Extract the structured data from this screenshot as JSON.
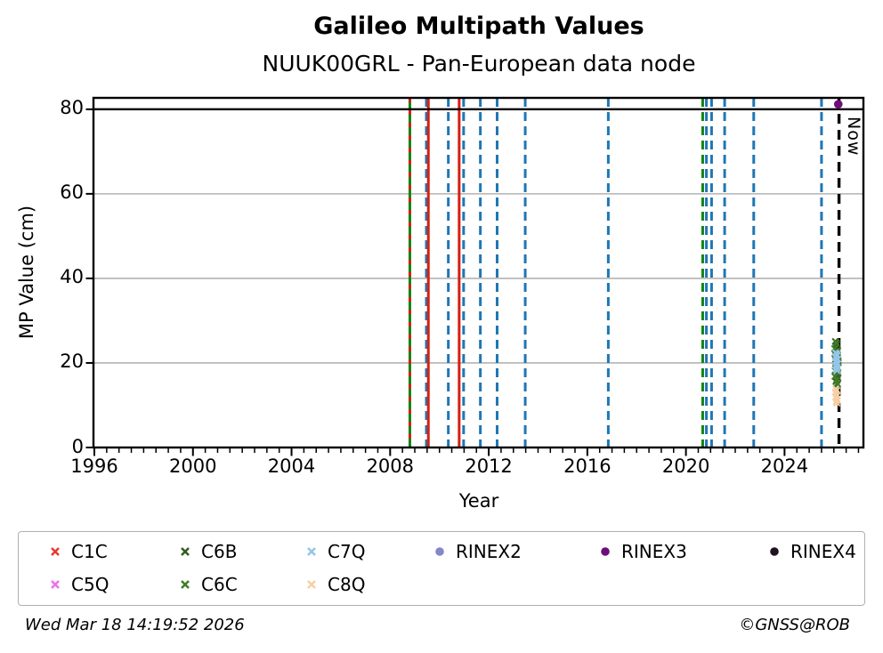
{
  "page": {
    "title": "Galileo Multipath Values",
    "subtitle": "NUUK00GRL - Pan-European data node"
  },
  "footer": {
    "timestamp": "Wed Mar 18 14:19:52 2026",
    "credit": "©GNSS@ROB"
  },
  "chart_data": {
    "type": "scatter",
    "title": "Galileo Multipath Values",
    "subtitle": "NUUK00GRL - Pan-European data node",
    "xlabel": "Year",
    "ylabel": "MP Value (cm)",
    "now_label": "Now",
    "xlim": [
      1996,
      2027.2
    ],
    "ylim": [
      0,
      82.7
    ],
    "x_major_ticks": [
      1996,
      2000,
      2004,
      2008,
      2012,
      2016,
      2020,
      2024
    ],
    "x_minor_step": 0.5,
    "y_ticks": [
      0,
      20,
      40,
      60,
      80
    ],
    "gridlines_y": [
      20,
      40,
      60
    ],
    "hline_y": 80,
    "grid_on": true,
    "legend_position": "bottom",
    "now_x": 2026.21,
    "colors": {
      "blue_event": "#1f77b4",
      "red_event": "#d62010",
      "green_event": "#128412",
      "now_line": "#000000",
      "grid": "#b3b3b3",
      "hline": "#000000"
    },
    "event_lines": [
      {
        "x": 2008.8,
        "color": "green",
        "style": "solid"
      },
      {
        "x": 2008.8,
        "color": "red",
        "style": "dashed"
      },
      {
        "x": 2009.47,
        "color": "blue",
        "style": "dashed"
      },
      {
        "x": 2009.55,
        "color": "red",
        "style": "solid"
      },
      {
        "x": 2010.36,
        "color": "blue",
        "style": "dashed"
      },
      {
        "x": 2010.8,
        "color": "red",
        "style": "solid"
      },
      {
        "x": 2010.98,
        "color": "blue",
        "style": "dashed"
      },
      {
        "x": 2011.66,
        "color": "blue",
        "style": "dashed"
      },
      {
        "x": 2012.34,
        "color": "blue",
        "style": "dashed"
      },
      {
        "x": 2013.48,
        "color": "blue",
        "style": "dashed"
      },
      {
        "x": 2016.85,
        "color": "blue",
        "style": "dashed"
      },
      {
        "x": 2020.68,
        "color": "green",
        "style": "dashed"
      },
      {
        "x": 2020.83,
        "color": "blue",
        "style": "dashed"
      },
      {
        "x": 2021.04,
        "color": "blue",
        "style": "dashed"
      },
      {
        "x": 2021.57,
        "color": "blue",
        "style": "dashed"
      },
      {
        "x": 2022.75,
        "color": "blue",
        "style": "dashed"
      },
      {
        "x": 2025.5,
        "color": "blue",
        "style": "dashed"
      }
    ],
    "series": [
      {
        "id": "C1C",
        "color": "#e8392f",
        "marker": "x",
        "points": []
      },
      {
        "id": "C5Q",
        "color": "#ef6ef0",
        "marker": "x",
        "points": [
          [
            2026.07,
            20.7
          ],
          [
            2026.12,
            16.9
          ]
        ]
      },
      {
        "id": "C6B",
        "color": "#355c1c",
        "marker": "x",
        "points": [
          [
            2026.06,
            25.1
          ],
          [
            2026.13,
            24.4
          ],
          [
            2026.09,
            23.7
          ],
          [
            2026.16,
            23.0
          ],
          [
            2026.04,
            22.2
          ],
          [
            2026.11,
            21.4
          ],
          [
            2026.18,
            20.6
          ],
          [
            2026.07,
            19.8
          ],
          [
            2026.14,
            19.0
          ],
          [
            2026.05,
            18.2
          ],
          [
            2026.12,
            17.3
          ],
          [
            2026.17,
            16.4
          ],
          [
            2026.08,
            15.6
          ],
          [
            2026.15,
            14.9
          ]
        ]
      },
      {
        "id": "C6C",
        "color": "#3f7d28",
        "marker": "x",
        "points": [
          [
            2026.1,
            24.8
          ],
          [
            2026.03,
            23.4
          ],
          [
            2026.15,
            22.6
          ],
          [
            2026.07,
            21.8
          ],
          [
            2026.13,
            21.0
          ],
          [
            2026.19,
            20.1
          ],
          [
            2026.06,
            19.3
          ],
          [
            2026.12,
            18.5
          ],
          [
            2026.17,
            17.7
          ],
          [
            2026.04,
            16.8
          ],
          [
            2026.11,
            16.0
          ],
          [
            2026.14,
            15.2
          ]
        ]
      },
      {
        "id": "C7Q",
        "color": "#94c6e9",
        "marker": "x",
        "points": [
          [
            2026.07,
            22.4
          ],
          [
            2026.11,
            22.1
          ],
          [
            2026.15,
            21.8
          ],
          [
            2026.06,
            21.4
          ],
          [
            2026.1,
            21.1
          ],
          [
            2026.14,
            20.8
          ],
          [
            2026.08,
            20.4
          ],
          [
            2026.12,
            20.1
          ],
          [
            2026.16,
            19.8
          ],
          [
            2026.07,
            19.4
          ],
          [
            2026.11,
            19.1
          ],
          [
            2026.14,
            18.8
          ],
          [
            2026.09,
            18.5
          ],
          [
            2026.13,
            18.2
          ]
        ]
      },
      {
        "id": "C8Q",
        "color": "#f6cfa4",
        "marker": "x",
        "points": [
          [
            2026.08,
            13.9
          ],
          [
            2026.12,
            13.5
          ],
          [
            2026.06,
            13.1
          ],
          [
            2026.1,
            12.7
          ],
          [
            2026.14,
            12.3
          ],
          [
            2026.07,
            11.9
          ],
          [
            2026.11,
            11.5
          ],
          [
            2026.15,
            11.1
          ],
          [
            2026.09,
            10.8
          ],
          [
            2026.13,
            10.5
          ]
        ]
      },
      {
        "id": "RINEX2",
        "color": "#8487c9",
        "marker": "dot",
        "points": []
      },
      {
        "id": "RINEX3",
        "color": "#6f0d7a",
        "marker": "dot",
        "points": [
          [
            2026.18,
            81.2
          ]
        ]
      },
      {
        "id": "RINEX4",
        "color": "#201020",
        "marker": "dot",
        "points": []
      }
    ]
  },
  "legend": {
    "col_lefts": [
      33,
      179,
      321,
      465,
      651,
      841
    ],
    "row_tops": [
      8,
      45
    ],
    "items": [
      {
        "label": "C1C",
        "color": "#e8392f",
        "marker": "x",
        "row": 0,
        "col": 0
      },
      {
        "label": "C5Q",
        "color": "#ef6ef0",
        "marker": "x",
        "row": 1,
        "col": 0
      },
      {
        "label": "C6B",
        "color": "#355c1c",
        "marker": "x",
        "row": 0,
        "col": 1
      },
      {
        "label": "C6C",
        "color": "#3f7d28",
        "marker": "x",
        "row": 1,
        "col": 1
      },
      {
        "label": "C7Q",
        "color": "#94c6e9",
        "marker": "x",
        "row": 0,
        "col": 2
      },
      {
        "label": "C8Q",
        "color": "#f6cfa4",
        "marker": "x",
        "row": 1,
        "col": 2
      },
      {
        "label": "RINEX2",
        "color": "#8487c9",
        "marker": "dot",
        "row": 0,
        "col": 3
      },
      {
        "label": "RINEX3",
        "color": "#6f0d7a",
        "marker": "dot",
        "row": 0,
        "col": 4
      },
      {
        "label": "RINEX4",
        "color": "#201020",
        "marker": "dot",
        "row": 0,
        "col": 5
      }
    ]
  }
}
